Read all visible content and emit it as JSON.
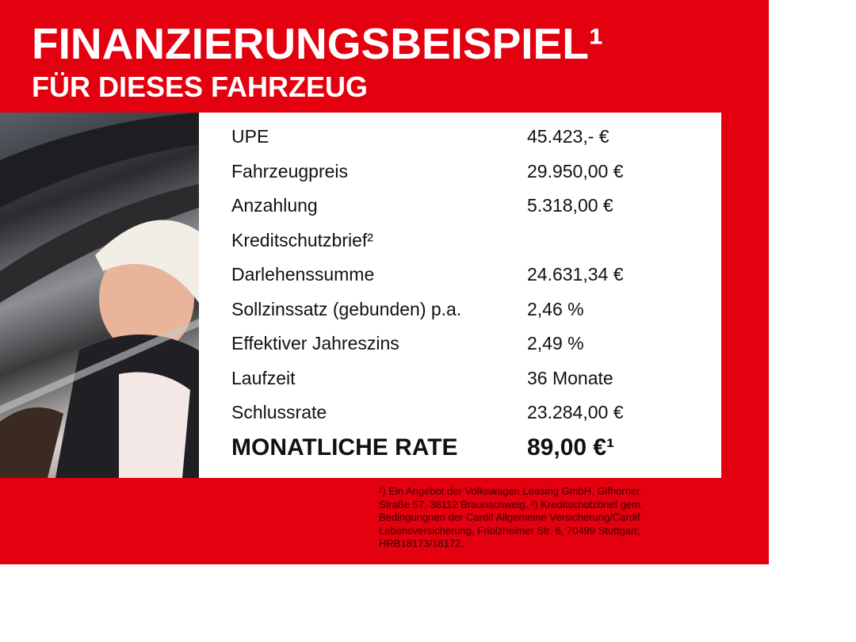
{
  "header": {
    "title": "FINANZIERUNGSBEISPIEL¹",
    "subtitle": "FÜR DIESES FAHRZEUG"
  },
  "colors": {
    "brand_red": "#e3000f"
  },
  "photo": {
    "icon": "woman-in-car-photo"
  },
  "table": [
    {
      "label": "UPE",
      "value": "45.423,- €"
    },
    {
      "label": "Fahrzeugpreis",
      "value": "29.950,00 €"
    },
    {
      "label": "Anzahlung",
      "value": "5.318,00 €"
    },
    {
      "label": "Kreditschutzbrief²",
      "value": ""
    },
    {
      "label": "Darlehenssumme",
      "value": "24.631,34 €"
    },
    {
      "label": "Sollzinssatz (gebunden) p.a.",
      "value": "2,46 %"
    },
    {
      "label": "Effektiver Jahreszins",
      "value": "2,49 %"
    },
    {
      "label": "Laufzeit",
      "value": "36 Monate"
    },
    {
      "label": "Schlussrate",
      "value": "23.284,00 €"
    }
  ],
  "total": {
    "label": "MONATLICHE RATE",
    "value": "89,00 €¹"
  },
  "footnote": [
    "¹) Ein Angebot der Volkswagen Leasing GmbH, Gifhorner",
    "Straße 57, 38112 Braunschweig. ²) Kreditschutzbrief gem.",
    "Bedingungnen der Cardif Allgemeine Versicherung/Cardif",
    "Lebensversicherung, Friolzheimer Str. 6, 70499 Stuttgart;",
    "HRB18173/18172."
  ]
}
